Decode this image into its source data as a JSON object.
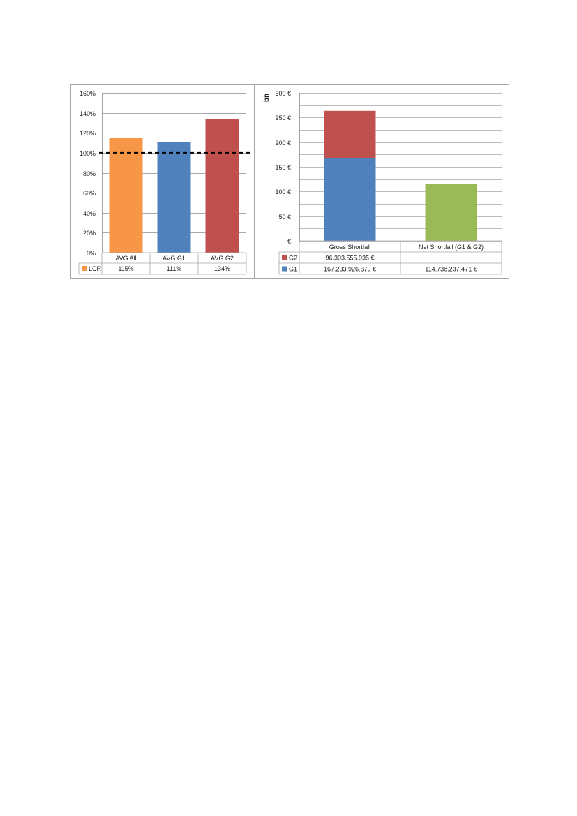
{
  "chart_data": [
    {
      "type": "bar",
      "categories": [
        "AVG All",
        "AVG G1",
        "AVG G2"
      ],
      "series": [
        {
          "name": "LCR",
          "values": [
            115,
            111,
            134
          ],
          "display": [
            "115%",
            "111%",
            "134%"
          ],
          "colors": [
            "#f79646",
            "#4f81bd",
            "#c0504d"
          ]
        }
      ],
      "y_ticks": [
        "0%",
        "20%",
        "40%",
        "60%",
        "80%",
        "100%",
        "120%",
        "140%",
        "160%"
      ],
      "ylim": [
        0,
        160
      ],
      "threshold": 100,
      "legend_color": "#f79646"
    },
    {
      "type": "bar",
      "stacked": true,
      "categories": [
        "Gross Shortfall",
        "Net Shortfall (G1 & G2)"
      ],
      "series": [
        {
          "name": "G2",
          "color": "#c0504d",
          "values": [
            96.303555935,
            null
          ],
          "display": [
            "96.303.555.935 €",
            ""
          ]
        },
        {
          "name": "G1",
          "color": "#4f81bd",
          "values": [
            167.233926679,
            0
          ],
          "display": [
            "167.233.926.679 €",
            "114.738.237.471 €"
          ]
        }
      ],
      "net_bar": {
        "value": 114.738237471,
        "color": "#9bbb59"
      },
      "ylabel": "bn",
      "y_ticks": [
        " -  €",
        "50 €",
        "100 €",
        "150 €",
        "200 €",
        "250 €",
        "300 €"
      ],
      "ylim": [
        0,
        300
      ]
    }
  ]
}
